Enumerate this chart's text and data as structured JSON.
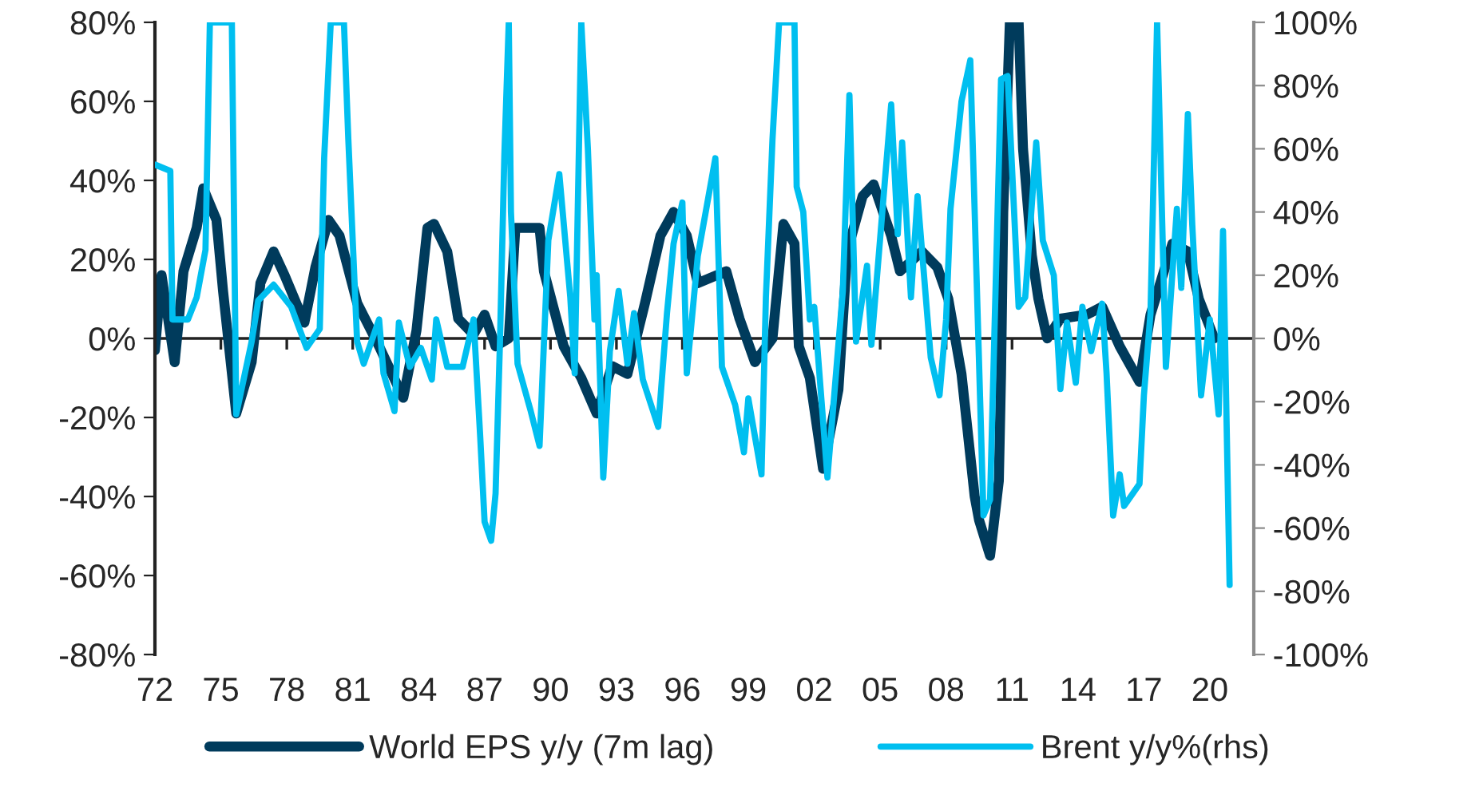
{
  "chart_data": {
    "type": "line",
    "xlim": [
      1972,
      2022
    ],
    "xticks": [
      {
        "value": 1972,
        "label": "72"
      },
      {
        "value": 1975,
        "label": "75"
      },
      {
        "value": 1978,
        "label": "78"
      },
      {
        "value": 1981,
        "label": "81"
      },
      {
        "value": 1984,
        "label": "84"
      },
      {
        "value": 1987,
        "label": "87"
      },
      {
        "value": 1990,
        "label": "90"
      },
      {
        "value": 1993,
        "label": "93"
      },
      {
        "value": 1996,
        "label": "96"
      },
      {
        "value": 1999,
        "label": "99"
      },
      {
        "value": 2002,
        "label": "02"
      },
      {
        "value": 2005,
        "label": "05"
      },
      {
        "value": 2008,
        "label": "08"
      },
      {
        "value": 2011,
        "label": "11"
      },
      {
        "value": 2014,
        "label": "14"
      },
      {
        "value": 2017,
        "label": "17"
      },
      {
        "value": 2020,
        "label": "20"
      }
    ],
    "ylim": [
      -80,
      80
    ],
    "yticks": [
      {
        "value": -80,
        "label": "-80%"
      },
      {
        "value": -60,
        "label": "-60%"
      },
      {
        "value": -40,
        "label": "-40%"
      },
      {
        "value": -20,
        "label": "-20%"
      },
      {
        "value": 0,
        "label": "0%"
      },
      {
        "value": 20,
        "label": "20%"
      },
      {
        "value": 40,
        "label": "40%"
      },
      {
        "value": 60,
        "label": "60%"
      },
      {
        "value": 80,
        "label": "80%"
      }
    ],
    "y2lim": [
      -100,
      100
    ],
    "y2ticks": [
      {
        "value": -100,
        "label": "-100%"
      },
      {
        "value": -80,
        "label": "-80%"
      },
      {
        "value": -60,
        "label": "-60%"
      },
      {
        "value": -40,
        "label": "-40%"
      },
      {
        "value": -20,
        "label": "-20%"
      },
      {
        "value": 0,
        "label": "0%"
      },
      {
        "value": 20,
        "label": "20%"
      },
      {
        "value": 40,
        "label": "40%"
      },
      {
        "value": 60,
        "label": "60%"
      },
      {
        "value": 80,
        "label": "80%"
      },
      {
        "value": 100,
        "label": "100%"
      }
    ],
    "legend": "bottom",
    "marker": "none",
    "line_style": "solid",
    "series": [
      {
        "name": "World EPS y/y (7m lag)",
        "color": "#003b5c",
        "axis": "y",
        "x": [
          1972.0,
          1972.3,
          1972.9,
          1973.3,
          1973.9,
          1974.2,
          1974.8,
          1975.1,
          1975.7,
          1976.4,
          1976.8,
          1977.4,
          1977.9,
          1978.8,
          1979.3,
          1979.9,
          1980.4,
          1981.2,
          1982.2,
          1983.3,
          1983.9,
          1984.4,
          1984.7,
          1985.3,
          1985.8,
          1986.5,
          1987.0,
          1987.5,
          1988.1,
          1988.4,
          1989.5,
          1989.7,
          1990.6,
          1991.4,
          1992.1,
          1992.8,
          1993.5,
          1994.3,
          1995.0,
          1995.6,
          1996.2,
          1996.7,
          1998.0,
          1998.6,
          1999.3,
          2000.1,
          2000.6,
          2001.1,
          2001.3,
          2001.8,
          2002.4,
          2003.1,
          2003.5,
          2004.2,
          2004.7,
          2005.5,
          2005.9,
          2006.9,
          2007.6,
          2008.1,
          2008.7,
          2009.3,
          2009.5,
          2010.0,
          2010.4,
          2010.5,
          2010.6,
          2010.9,
          2011.3,
          2011.5,
          2011.9,
          2012.2,
          2012.6,
          2013.2,
          2014.4,
          2015.1,
          2015.9,
          2016.8,
          2017.3,
          2018.3,
          2019.0,
          2019.5,
          2020.2
        ],
        "values": [
          -3,
          16,
          -6,
          17,
          28,
          38,
          30,
          12,
          -19,
          -6,
          14,
          22,
          16,
          4,
          18,
          30,
          26,
          9,
          -2,
          -15,
          2,
          28,
          29,
          22,
          5,
          1,
          6,
          -2,
          0,
          28,
          28,
          17,
          -2,
          -10,
          -19,
          -7,
          -9,
          9,
          26,
          32,
          26,
          14,
          17,
          5,
          -6,
          0,
          29,
          24,
          -2,
          -10,
          -33,
          -13,
          22,
          36,
          39,
          26,
          17,
          22,
          18,
          10,
          -9,
          -40,
          -46,
          -55,
          -36,
          -9,
          32,
          80,
          80,
          48,
          21,
          10,
          0,
          5,
          6,
          8,
          -2,
          -11,
          6,
          24,
          22,
          10,
          0
        ]
      },
      {
        "name": "Brent y/y%(rhs)",
        "color": "#00bff0",
        "axis": "y2",
        "x": [
          1972.0,
          1972.7,
          1972.8,
          1973.5,
          1973.9,
          1974.3,
          1974.5,
          1975.5,
          1975.7,
          1976.4,
          1976.7,
          1977.4,
          1978.2,
          1978.9,
          1979.5,
          1979.7,
          1980.0,
          1980.6,
          1980.8,
          1981.2,
          1981.5,
          1982.2,
          1982.4,
          1982.9,
          1983.1,
          1983.6,
          1984.1,
          1984.6,
          1984.8,
          1985.3,
          1986.0,
          1986.5,
          1986.8,
          1987.0,
          1987.3,
          1987.5,
          1987.7,
          1987.9,
          1988.1,
          1988.2,
          1988.5,
          1989.1,
          1989.5,
          1989.9,
          1990.4,
          1990.9,
          1991.1,
          1991.4,
          1991.7,
          1992.0,
          1992.1,
          1992.4,
          1992.7,
          1993.1,
          1993.5,
          1993.8,
          1994.2,
          1994.9,
          1995.3,
          1995.6,
          1996.0,
          1996.2,
          1996.7,
          1997.5,
          1997.8,
          1998.4,
          1998.8,
          1999.0,
          1999.6,
          1999.8,
          2000.1,
          2000.4,
          2001.1,
          2001.2,
          2001.5,
          2001.8,
          2002.0,
          2002.6,
          2003.3,
          2003.6,
          2003.9,
          2004.4,
          2004.6,
          2005.5,
          2005.8,
          2006.0,
          2006.4,
          2006.7,
          2007.3,
          2007.7,
          2008.0,
          2008.2,
          2008.7,
          2009.1,
          2009.7,
          2010.0,
          2010.5,
          2010.8,
          2011.3,
          2011.6,
          2012.1,
          2012.4,
          2012.9,
          2013.2,
          2013.5,
          2013.9,
          2014.2,
          2014.6,
          2015.1,
          2015.3,
          2015.6,
          2015.9,
          2016.1,
          2016.8,
          2017.0,
          2017.3,
          2017.6,
          2018.0,
          2018.3,
          2018.5,
          2018.7,
          2019.0,
          2019.2,
          2019.6,
          2020.0,
          2020.4,
          2020.6,
          2020.9
        ],
        "values": [
          55,
          53,
          6,
          6,
          13,
          28,
          100,
          100,
          -24,
          -1,
          12,
          17,
          10,
          -3,
          3,
          57,
          100,
          100,
          63,
          -1,
          -8,
          6,
          -11,
          -23,
          5,
          -9,
          -3,
          -13,
          6,
          -9,
          -9,
          6,
          -31,
          -58,
          -64,
          -49,
          -1,
          58,
          100,
          40,
          -8,
          -23,
          -34,
          31,
          52,
          13,
          -11,
          100,
          60,
          6,
          20,
          -44,
          -4,
          15,
          -8,
          8,
          -13,
          -28,
          8,
          30,
          43,
          -11,
          26,
          57,
          -9,
          -21,
          -36,
          -19,
          -43,
          13,
          63,
          100,
          100,
          48,
          40,
          6,
          10,
          -44,
          15,
          77,
          -1,
          23,
          -2,
          74,
          33,
          62,
          13,
          45,
          -6,
          -18,
          6,
          41,
          75,
          88,
          -56,
          -51,
          82,
          83,
          10,
          13,
          62,
          31,
          20,
          -16,
          5,
          -14,
          10,
          -4,
          11,
          -11,
          -56,
          -43,
          -53,
          -46,
          -18,
          8,
          100,
          -9,
          21,
          41,
          16,
          71,
          36,
          -18,
          6,
          -24,
          34,
          -78
        ]
      }
    ]
  }
}
